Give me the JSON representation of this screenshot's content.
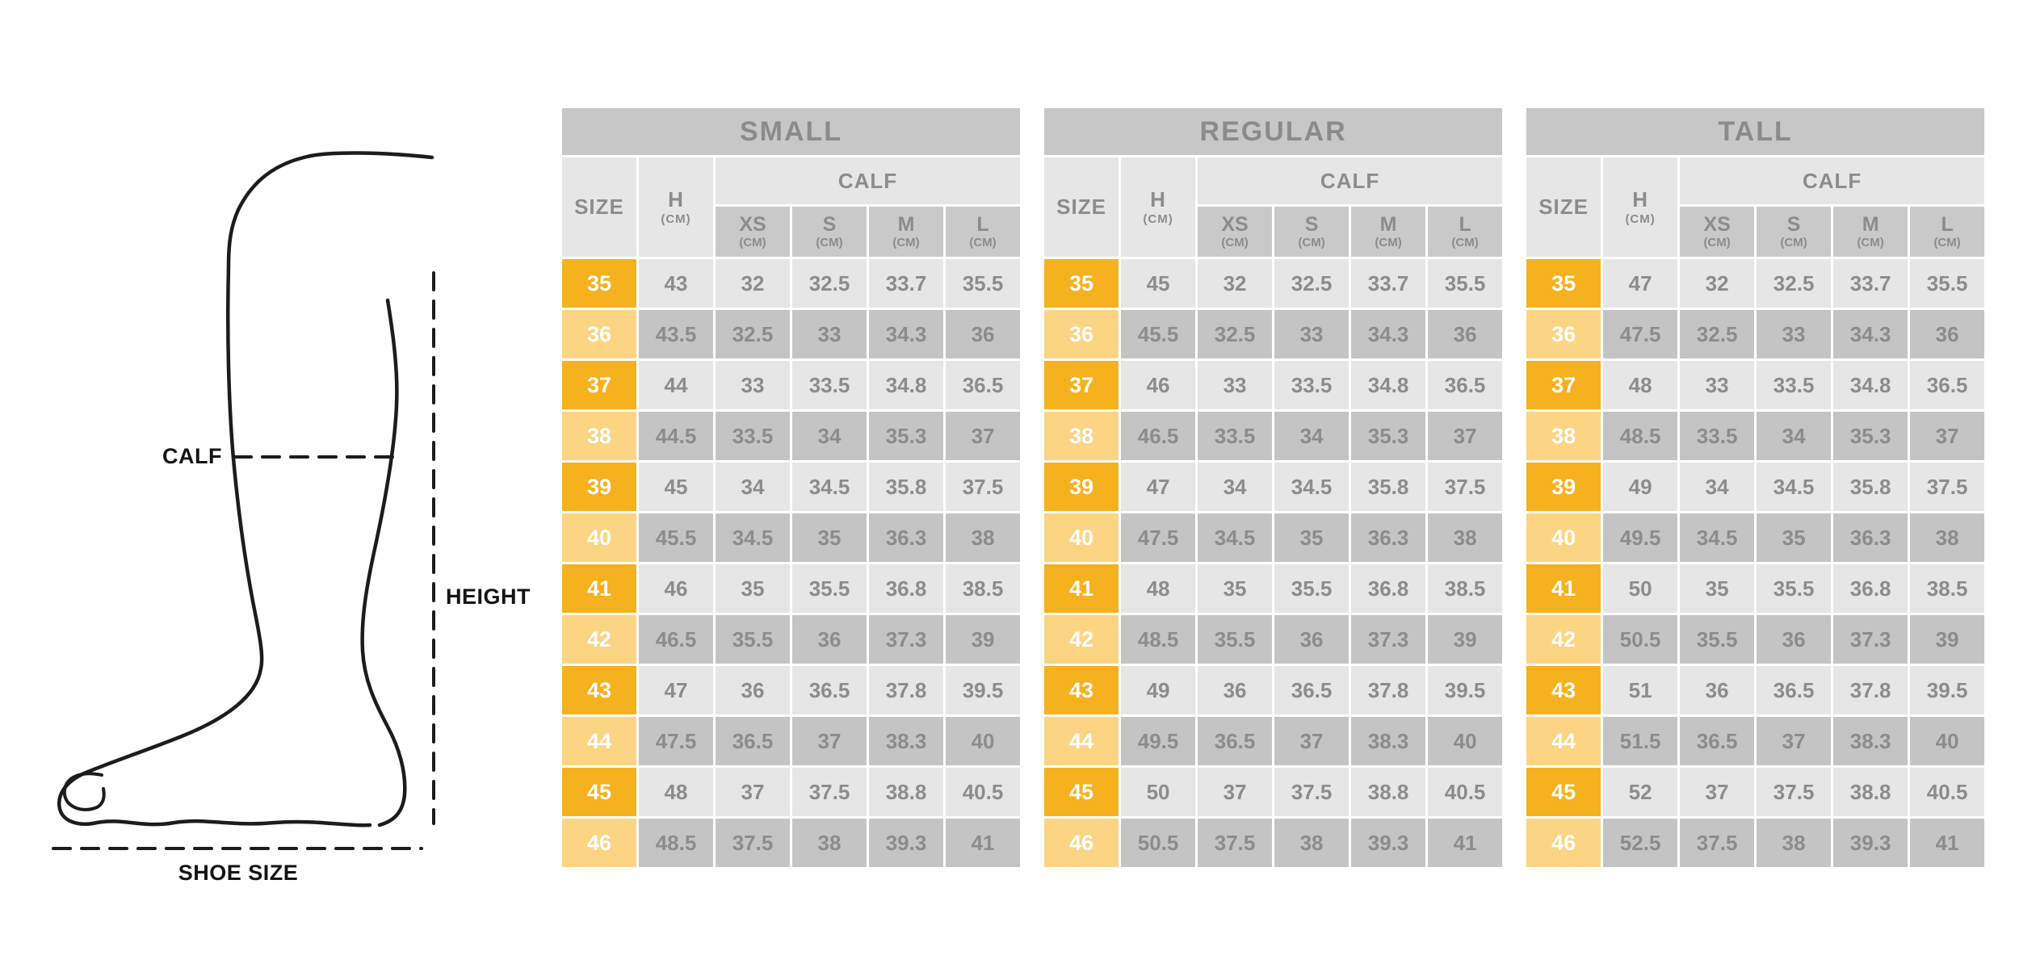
{
  "diagram": {
    "calf_label": "CALF",
    "height_label": "HEIGHT",
    "shoe_size_label": "SHOE SIZE"
  },
  "table_template": {
    "size_label": "SIZE",
    "h_label": "H",
    "unit": "(CM)",
    "calf_label": "CALF",
    "calf_cols": [
      "XS",
      "S",
      "M",
      "L"
    ]
  },
  "tables": [
    {
      "title": "SMALL",
      "rows": [
        [
          "35",
          "43",
          "32",
          "32.5",
          "33.7",
          "35.5"
        ],
        [
          "36",
          "43.5",
          "32.5",
          "33",
          "34.3",
          "36"
        ],
        [
          "37",
          "44",
          "33",
          "33.5",
          "34.8",
          "36.5"
        ],
        [
          "38",
          "44.5",
          "33.5",
          "34",
          "35.3",
          "37"
        ],
        [
          "39",
          "45",
          "34",
          "34.5",
          "35.8",
          "37.5"
        ],
        [
          "40",
          "45.5",
          "34.5",
          "35",
          "36.3",
          "38"
        ],
        [
          "41",
          "46",
          "35",
          "35.5",
          "36.8",
          "38.5"
        ],
        [
          "42",
          "46.5",
          "35.5",
          "36",
          "37.3",
          "39"
        ],
        [
          "43",
          "47",
          "36",
          "36.5",
          "37.8",
          "39.5"
        ],
        [
          "44",
          "47.5",
          "36.5",
          "37",
          "38.3",
          "40"
        ],
        [
          "45",
          "48",
          "37",
          "37.5",
          "38.8",
          "40.5"
        ],
        [
          "46",
          "48.5",
          "37.5",
          "38",
          "39.3",
          "41"
        ]
      ]
    },
    {
      "title": "REGULAR",
      "rows": [
        [
          "35",
          "45",
          "32",
          "32.5",
          "33.7",
          "35.5"
        ],
        [
          "36",
          "45.5",
          "32.5",
          "33",
          "34.3",
          "36"
        ],
        [
          "37",
          "46",
          "33",
          "33.5",
          "34.8",
          "36.5"
        ],
        [
          "38",
          "46.5",
          "33.5",
          "34",
          "35.3",
          "37"
        ],
        [
          "39",
          "47",
          "34",
          "34.5",
          "35.8",
          "37.5"
        ],
        [
          "40",
          "47.5",
          "34.5",
          "35",
          "36.3",
          "38"
        ],
        [
          "41",
          "48",
          "35",
          "35.5",
          "36.8",
          "38.5"
        ],
        [
          "42",
          "48.5",
          "35.5",
          "36",
          "37.3",
          "39"
        ],
        [
          "43",
          "49",
          "36",
          "36.5",
          "37.8",
          "39.5"
        ],
        [
          "44",
          "49.5",
          "36.5",
          "37",
          "38.3",
          "40"
        ],
        [
          "45",
          "50",
          "37",
          "37.5",
          "38.8",
          "40.5"
        ],
        [
          "46",
          "50.5",
          "37.5",
          "38",
          "39.3",
          "41"
        ]
      ]
    },
    {
      "title": "TALL",
      "rows": [
        [
          "35",
          "47",
          "32",
          "32.5",
          "33.7",
          "35.5"
        ],
        [
          "36",
          "47.5",
          "32.5",
          "33",
          "34.3",
          "36"
        ],
        [
          "37",
          "48",
          "33",
          "33.5",
          "34.8",
          "36.5"
        ],
        [
          "38",
          "48.5",
          "33.5",
          "34",
          "35.3",
          "37"
        ],
        [
          "39",
          "49",
          "34",
          "34.5",
          "35.8",
          "37.5"
        ],
        [
          "40",
          "49.5",
          "34.5",
          "35",
          "36.3",
          "38"
        ],
        [
          "41",
          "50",
          "35",
          "35.5",
          "36.8",
          "38.5"
        ],
        [
          "42",
          "50.5",
          "35.5",
          "36",
          "37.3",
          "39"
        ],
        [
          "43",
          "51",
          "36",
          "36.5",
          "37.8",
          "39.5"
        ],
        [
          "44",
          "51.5",
          "36.5",
          "37",
          "38.3",
          "40"
        ],
        [
          "45",
          "52",
          "37",
          "37.5",
          "38.8",
          "40.5"
        ],
        [
          "46",
          "52.5",
          "37.5",
          "38",
          "39.3",
          "41"
        ]
      ]
    }
  ],
  "colors": {
    "size_cell_dark": "#f6b11e",
    "size_cell_light": "#fbd584",
    "band_gray": "#c7c7c7",
    "subheader_gray": "#c9c9c9",
    "cell_light_gray": "#e6e6e6",
    "cell_dark_gray": "#c4c4c4",
    "table_text_gray": "#8c8c8c",
    "diagram_line": "#1c1c1c"
  }
}
